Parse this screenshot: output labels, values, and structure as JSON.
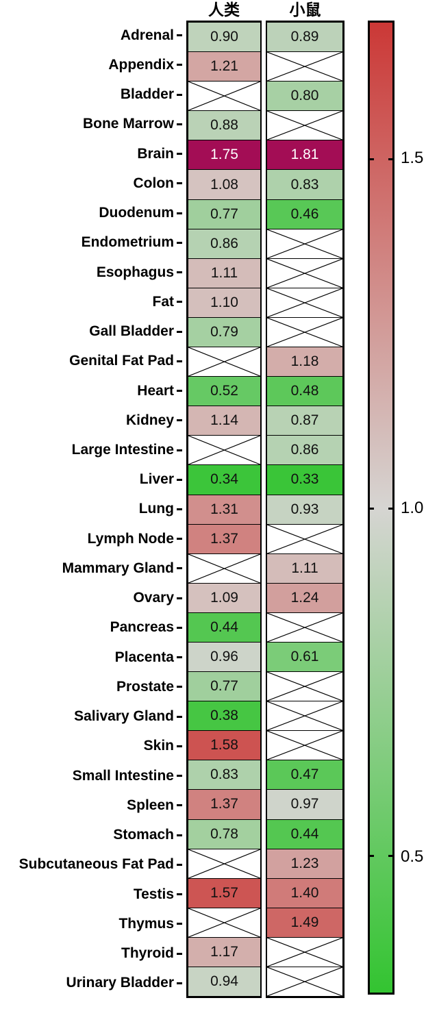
{
  "chart_data": {
    "type": "heatmap",
    "columns": [
      "人类",
      "小鼠"
    ],
    "rows": [
      "Adrenal",
      "Appendix",
      "Bladder",
      "Bone Marrow",
      "Brain",
      "Colon",
      "Duodenum",
      "Endometrium",
      "Esophagus",
      "Fat",
      "Gall Bladder",
      "Genital Fat Pad",
      "Heart",
      "Kidney",
      "Large Intestine",
      "Liver",
      "Lung",
      "Lymph Node",
      "Mammary Gland",
      "Ovary",
      "Pancreas",
      "Placenta",
      "Prostate",
      "Salivary Gland",
      "Skin",
      "Small Intestine",
      "Spleen",
      "Stomach",
      "Subcutaneous Fat Pad",
      "Testis",
      "Thymus",
      "Thyroid",
      "Urinary Bladder"
    ],
    "series": [
      {
        "name": "人类",
        "values": [
          0.9,
          1.21,
          null,
          0.88,
          1.75,
          1.08,
          0.77,
          0.86,
          1.11,
          1.1,
          0.79,
          null,
          0.52,
          1.14,
          null,
          0.34,
          1.31,
          1.37,
          null,
          1.09,
          0.44,
          0.96,
          0.77,
          0.38,
          1.58,
          0.83,
          1.37,
          0.78,
          null,
          1.57,
          null,
          1.17,
          0.94
        ]
      },
      {
        "name": "小鼠",
        "values": [
          0.89,
          null,
          0.8,
          null,
          1.81,
          0.83,
          0.46,
          null,
          null,
          null,
          null,
          1.18,
          0.48,
          0.87,
          0.86,
          0.33,
          0.93,
          null,
          1.11,
          1.24,
          null,
          0.61,
          null,
          null,
          null,
          0.47,
          0.97,
          0.44,
          1.23,
          1.4,
          1.49,
          null,
          null
        ]
      }
    ],
    "missing_marker": "crossed-cell",
    "value_decimals": 2,
    "colorbar": {
      "ticks": [
        "1.5",
        "1.0",
        "0.5"
      ],
      "tick_positions_pct": [
        14.1,
        50.1,
        85.9
      ],
      "scale_min": 0.3,
      "scale_mid": 1.0,
      "scale_max": 1.7,
      "color_min": "#33c431",
      "color_mid": "#d6d5d2",
      "color_max": "#cb3836",
      "color_over": "#a30d55",
      "value_text_color": "#111111",
      "value_text_color_over": "#ffffff",
      "legend_position": "right"
    },
    "layout": {
      "grid_on": false,
      "cell_borders": true
    }
  }
}
